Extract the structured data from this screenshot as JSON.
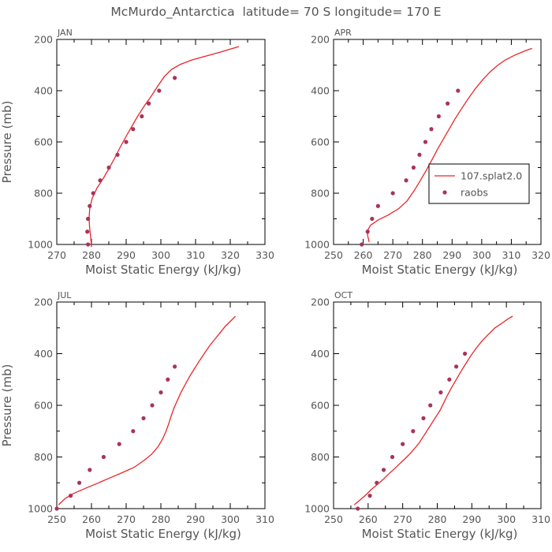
{
  "figure": {
    "title": "McMurdo_Antarctica  latitude= 70 S longitude= 170 E",
    "colors": {
      "model": "#e8262b",
      "obs": "#a8345a",
      "text": "#555555"
    }
  },
  "chart_data": [
    {
      "type": "line",
      "panel_label": "JAN",
      "xlabel": "Moist Static Energy (kJ/kg)",
      "ylabel": "Pressure (mb)",
      "xlim": [
        270,
        330
      ],
      "xticks": [
        270,
        280,
        290,
        300,
        310,
        320,
        330
      ],
      "ylim": [
        1000,
        200
      ],
      "yticks": [
        200,
        400,
        600,
        800,
        1000
      ],
      "legend": null,
      "series": [
        {
          "name": "107.splat2.0",
          "style": "line",
          "points": [
            [
              280.0,
              1010
            ],
            [
              279.8,
              975
            ],
            [
              279.5,
              940
            ],
            [
              279.3,
              900
            ],
            [
              279.5,
              860
            ],
            [
              280.2,
              820
            ],
            [
              281.6,
              780
            ],
            [
              283.5,
              740
            ],
            [
              285.2,
              700
            ],
            [
              286.8,
              660
            ],
            [
              288.3,
              620
            ],
            [
              289.9,
              580
            ],
            [
              291.6,
              540
            ],
            [
              293.3,
              500
            ],
            [
              295.2,
              460
            ],
            [
              297.3,
              420
            ],
            [
              299.2,
              380
            ],
            [
              301.0,
              345
            ],
            [
              303.0,
              318
            ],
            [
              305.5,
              298
            ],
            [
              309.0,
              280
            ],
            [
              313.0,
              265
            ],
            [
              317.0,
              250
            ],
            [
              320.0,
              238
            ],
            [
              322.5,
              228
            ]
          ]
        },
        {
          "name": "raobs",
          "style": "points",
          "points": [
            [
              279.0,
              1000
            ],
            [
              278.8,
              950
            ],
            [
              279.0,
              900
            ],
            [
              279.5,
              850
            ],
            [
              280.5,
              800
            ],
            [
              282.5,
              750
            ],
            [
              285.0,
              700
            ],
            [
              287.5,
              650
            ],
            [
              290.0,
              600
            ],
            [
              292.0,
              550
            ],
            [
              294.5,
              500
            ],
            [
              296.5,
              450
            ],
            [
              299.5,
              400
            ],
            [
              304.0,
              350
            ]
          ]
        }
      ]
    },
    {
      "type": "line",
      "panel_label": "APR",
      "xlabel": "Moist Static Energy (kJ/kg)",
      "ylabel": "",
      "xlim": [
        250,
        320
      ],
      "xticks": [
        250,
        260,
        270,
        280,
        290,
        300,
        310,
        320
      ],
      "ylim": [
        1000,
        200
      ],
      "yticks": [
        200,
        400,
        600,
        800,
        1000
      ],
      "legend": {
        "placement": "center-right",
        "entries": [
          "107.splat2.0",
          "raobs"
        ]
      },
      "series": [
        {
          "name": "107.splat2.0",
          "style": "line",
          "points": [
            [
              262.0,
              990
            ],
            [
              261.5,
              965
            ],
            [
              261.5,
              945
            ],
            [
              262.5,
              925
            ],
            [
              265.0,
              905
            ],
            [
              268.5,
              885
            ],
            [
              272.0,
              860
            ],
            [
              274.8,
              830
            ],
            [
              277.2,
              790
            ],
            [
              279.3,
              750
            ],
            [
              281.3,
              710
            ],
            [
              283.2,
              670
            ],
            [
              285.0,
              630
            ],
            [
              287.0,
              590
            ],
            [
              289.0,
              550
            ],
            [
              291.0,
              510
            ],
            [
              293.2,
              470
            ],
            [
              295.5,
              430
            ],
            [
              298.0,
              390
            ],
            [
              300.5,
              355
            ],
            [
              303.0,
              325
            ],
            [
              305.5,
              300
            ],
            [
              308.0,
              280
            ],
            [
              311.0,
              262
            ],
            [
              314.5,
              245
            ],
            [
              317.0,
              235
            ]
          ]
        },
        {
          "name": "raobs",
          "style": "points",
          "points": [
            [
              259.5,
              1000
            ],
            [
              261.5,
              950
            ],
            [
              263.0,
              900
            ],
            [
              265.0,
              850
            ],
            [
              270.0,
              800
            ],
            [
              274.5,
              750
            ],
            [
              277.0,
              700
            ],
            [
              279.0,
              650
            ],
            [
              281.0,
              600
            ],
            [
              283.0,
              550
            ],
            [
              285.5,
              500
            ],
            [
              288.5,
              450
            ],
            [
              292.0,
              400
            ]
          ]
        }
      ]
    },
    {
      "type": "line",
      "panel_label": "JUL",
      "xlabel": "Moist Static Energy (kJ/kg)",
      "ylabel": "Pressure (mb)",
      "xlim": [
        250,
        310
      ],
      "xticks": [
        250,
        260,
        270,
        280,
        290,
        300,
        310
      ],
      "ylim": [
        1000,
        200
      ],
      "yticks": [
        200,
        400,
        600,
        800,
        1000
      ],
      "legend": null,
      "series": [
        {
          "name": "107.splat2.0",
          "style": "line",
          "points": [
            [
              250.5,
              985
            ],
            [
              252.5,
              960
            ],
            [
              255.0,
              940
            ],
            [
              258.5,
              920
            ],
            [
              262.0,
              900
            ],
            [
              265.5,
              880
            ],
            [
              269.0,
              860
            ],
            [
              272.3,
              840
            ],
            [
              275.0,
              815
            ],
            [
              277.3,
              790
            ],
            [
              279.2,
              760
            ],
            [
              280.5,
              730
            ],
            [
              281.5,
              700
            ],
            [
              282.3,
              670
            ],
            [
              283.0,
              640
            ],
            [
              283.8,
              610
            ],
            [
              284.8,
              580
            ],
            [
              285.8,
              550
            ],
            [
              287.0,
              520
            ],
            [
              288.2,
              490
            ],
            [
              289.6,
              460
            ],
            [
              291.0,
              430
            ],
            [
              292.5,
              400
            ],
            [
              294.0,
              370
            ],
            [
              295.5,
              345
            ],
            [
              297.0,
              320
            ],
            [
              298.5,
              295
            ],
            [
              300.0,
              275
            ],
            [
              301.5,
              255
            ]
          ]
        },
        {
          "name": "raobs",
          "style": "points",
          "points": [
            [
              250.0,
              1000
            ],
            [
              254.0,
              950
            ],
            [
              256.5,
              900
            ],
            [
              259.5,
              850
            ],
            [
              263.5,
              800
            ],
            [
              268.0,
              750
            ],
            [
              272.0,
              700
            ],
            [
              275.0,
              650
            ],
            [
              277.5,
              600
            ],
            [
              280.0,
              550
            ],
            [
              282.0,
              500
            ],
            [
              284.0,
              450
            ]
          ]
        }
      ]
    },
    {
      "type": "line",
      "panel_label": "OCT",
      "xlabel": "Moist Static Energy (kJ/kg)",
      "ylabel": "",
      "xlim": [
        250,
        310
      ],
      "xticks": [
        250,
        260,
        270,
        280,
        290,
        300,
        310
      ],
      "ylim": [
        1000,
        200
      ],
      "yticks": [
        200,
        400,
        600,
        800,
        1000
      ],
      "legend": null,
      "series": [
        {
          "name": "107.splat2.0",
          "style": "line",
          "points": [
            [
              256.0,
              985
            ],
            [
              257.8,
              965
            ],
            [
              259.5,
              945
            ],
            [
              261.0,
              925
            ],
            [
              262.8,
              905
            ],
            [
              264.5,
              885
            ],
            [
              266.0,
              865
            ],
            [
              267.7,
              845
            ],
            [
              269.2,
              825
            ],
            [
              270.8,
              805
            ],
            [
              272.3,
              785
            ],
            [
              273.6,
              765
            ],
            [
              274.8,
              745
            ],
            [
              276.0,
              720
            ],
            [
              277.2,
              695
            ],
            [
              278.4,
              670
            ],
            [
              279.6,
              645
            ],
            [
              280.8,
              620
            ],
            [
              281.9,
              590
            ],
            [
              283.0,
              560
            ],
            [
              284.2,
              530
            ],
            [
              285.5,
              500
            ],
            [
              286.8,
              470
            ],
            [
              288.2,
              440
            ],
            [
              289.6,
              410
            ],
            [
              291.2,
              380
            ],
            [
              293.0,
              350
            ],
            [
              294.8,
              325
            ],
            [
              296.7,
              300
            ],
            [
              298.7,
              282
            ],
            [
              300.5,
              265
            ],
            [
              301.8,
              255
            ]
          ]
        },
        {
          "name": "raobs",
          "style": "points",
          "points": [
            [
              257.0,
              1000
            ],
            [
              260.5,
              950
            ],
            [
              262.5,
              900
            ],
            [
              264.5,
              850
            ],
            [
              267.0,
              800
            ],
            [
              270.0,
              750
            ],
            [
              273.0,
              700
            ],
            [
              276.0,
              650
            ],
            [
              278.0,
              600
            ],
            [
              281.0,
              550
            ],
            [
              283.5,
              500
            ],
            [
              285.5,
              450
            ],
            [
              288.0,
              400
            ]
          ]
        }
      ]
    }
  ]
}
